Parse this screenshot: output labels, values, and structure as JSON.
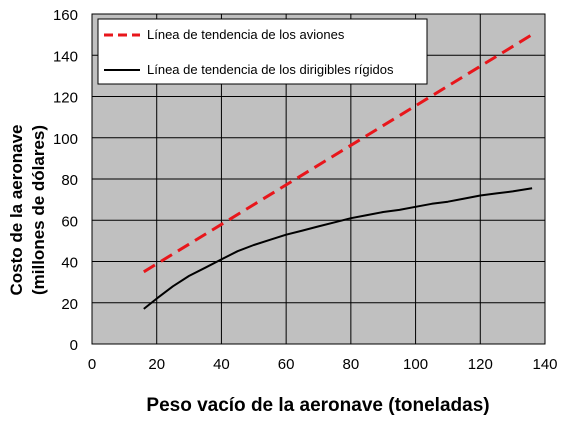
{
  "chart_data": {
    "type": "line",
    "xlabel": "Peso vacío de la aeronave (toneladas)",
    "ylabel_line1": "Costo de la aeronave",
    "ylabel_line2": "(millones de dólares)",
    "xlim": [
      0,
      140
    ],
    "ylim": [
      0,
      160
    ],
    "xticks": [
      "0",
      "20",
      "40",
      "60",
      "80",
      "100",
      "120",
      "140"
    ],
    "yticks": [
      "0",
      "20",
      "40",
      "60",
      "80",
      "100",
      "120",
      "140",
      "160"
    ],
    "grid": true,
    "legend_position": "top-right",
    "plot_background": "#c0c0c0",
    "series": [
      {
        "name": "Línea de tendencia de los aviones",
        "color": "#e8161b",
        "style": "dashed",
        "x": [
          16,
          136
        ],
        "y": [
          35,
          150
        ]
      },
      {
        "name": "Línea de tendencia de los dirigibles rígidos",
        "color": "#000000",
        "style": "solid",
        "x": [
          16,
          20,
          25,
          30,
          35,
          40,
          45,
          50,
          55,
          60,
          65,
          70,
          75,
          80,
          85,
          90,
          95,
          100,
          105,
          110,
          115,
          120,
          125,
          130,
          136
        ],
        "y": [
          17,
          22,
          28,
          33,
          37,
          41,
          45,
          48,
          50.5,
          53,
          55,
          57,
          59,
          61,
          62.5,
          64,
          65,
          66.5,
          68,
          69,
          70.5,
          72,
          73,
          74,
          75.5
        ]
      }
    ]
  }
}
